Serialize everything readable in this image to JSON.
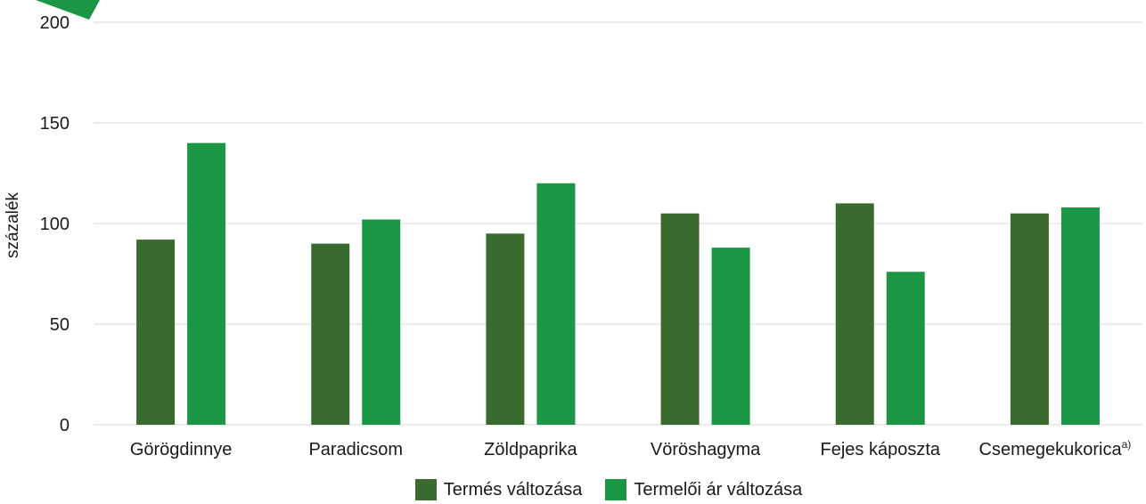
{
  "chart_data": {
    "type": "bar",
    "categories": [
      "Görögdinnye",
      "Paradicsom",
      "Zöldpaprika",
      "Vöröshagyma",
      "Fejes káposzta",
      "Csemegekukorica"
    ],
    "category_superscript": [
      "",
      "",
      "",
      "",
      "",
      "a)"
    ],
    "series": [
      {
        "name": "Termés változása",
        "color": "#3a6b2e",
        "values": [
          92,
          90,
          95,
          105,
          110,
          105
        ]
      },
      {
        "name": "Termelői ár változása",
        "color": "#1a9645",
        "values": [
          140,
          102,
          120,
          88,
          76,
          108
        ]
      }
    ],
    "ylabel": "százalék",
    "ylim": [
      0,
      200
    ],
    "yticks": [
      0,
      50,
      100,
      150,
      200
    ],
    "grid": true,
    "legend_position": "bottom"
  },
  "decoration": {
    "corner_shape_color": "#1a9645"
  }
}
